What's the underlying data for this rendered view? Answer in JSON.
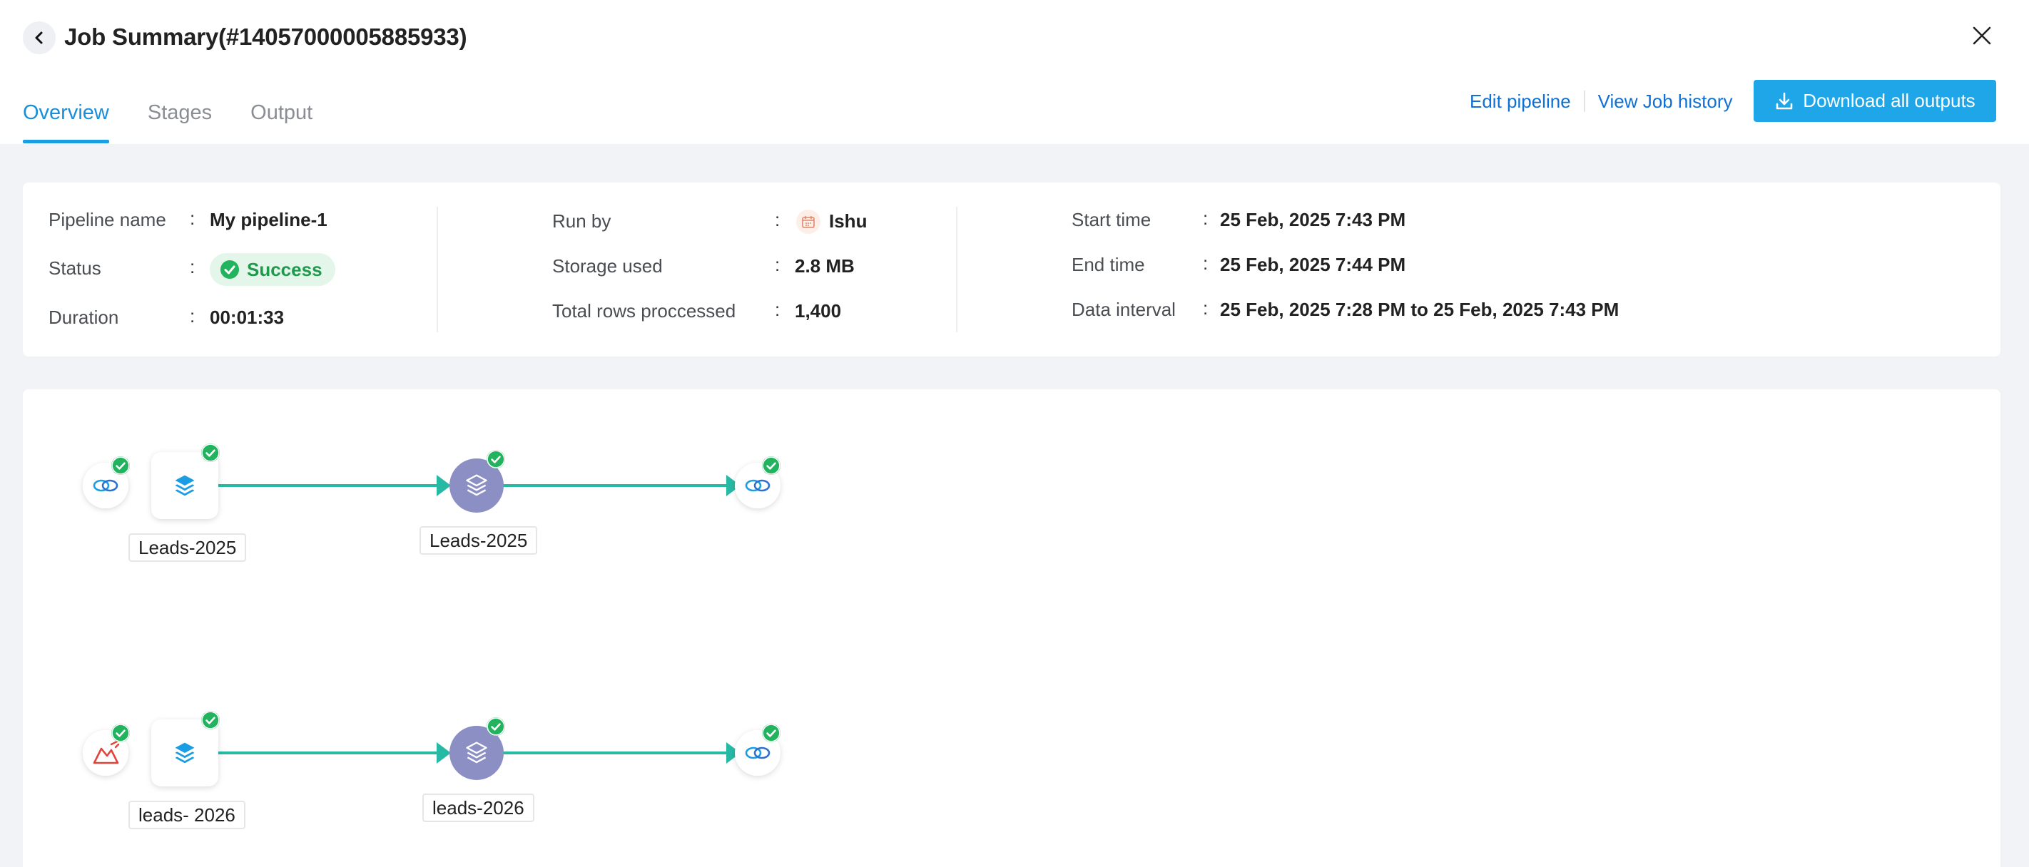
{
  "header": {
    "title": "Job Summary(#14057000005885933)",
    "tabs": [
      {
        "label": "Overview",
        "active": true
      },
      {
        "label": "Stages",
        "active": false
      },
      {
        "label": "Output",
        "active": false
      }
    ],
    "edit_pipeline": "Edit pipeline",
    "view_job_history": "View Job history",
    "download_all": "Download all outputs"
  },
  "summary": {
    "colon": ":",
    "pipeline_name_label": "Pipeline name",
    "pipeline_name": "My pipeline-1",
    "status_label": "Status",
    "status": "Success",
    "duration_label": "Duration",
    "duration": "00:01:33",
    "run_by_label": "Run by",
    "run_by": "Ishu",
    "storage_used_label": "Storage used",
    "storage_used": "2.8 MB",
    "total_rows_label": "Total rows proccessed",
    "total_rows": "1,400",
    "start_time_label": "Start time",
    "start_time": "25 Feb, 2025 7:43 PM",
    "end_time_label": "End time",
    "end_time": "25 Feb, 2025 7:44 PM",
    "data_interval_label": "Data interval",
    "data_interval": "25 Feb, 2025 7:28 PM to 25 Feb, 2025 7:43 PM"
  },
  "pipelines": [
    {
      "source_icon": "cloud-link-icon",
      "stage_label": "Leads-2025",
      "transform_label": "Leads-2025",
      "destination_icon": "cloud-link-icon"
    },
    {
      "source_icon": "chart-icon",
      "stage_label": "leads- 2026",
      "transform_label": "leads-2026",
      "destination_icon": "cloud-link-icon"
    }
  ],
  "colors": {
    "accent": "#1a9de2",
    "link": "#1170d4",
    "success": "#22b35e",
    "connector": "#26b9a4",
    "transform_node": "#8b8fc4"
  }
}
